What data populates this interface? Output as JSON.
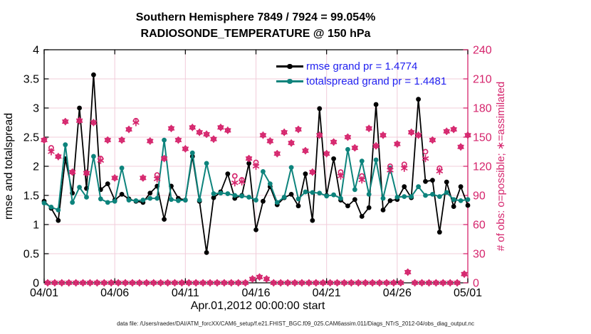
{
  "title": {
    "line1": "Southern Hemisphere 7849 / 7924 = 99.054%",
    "line2": "RADIOSONDE_TEMPERATURE @ 150 hPa"
  },
  "legend": [
    {
      "label": "rmse grand pr = 1.4774",
      "color": "#000000"
    },
    {
      "label": "totalspread grand pr = 1.4481",
      "color": "#0d837c"
    }
  ],
  "legend_text_color": "#2121f0",
  "axes": {
    "left": {
      "label": "rmse and totalspread",
      "ticks": [
        "0",
        "0.5",
        "1",
        "1.5",
        "2",
        "2.5",
        "3",
        "3.5",
        "4"
      ],
      "range": [
        0,
        4
      ],
      "color": "#000000"
    },
    "right": {
      "label": "# of obs: o=possible; ∗=assimilated",
      "ticks": [
        "0",
        "30",
        "60",
        "90",
        "120",
        "150",
        "180",
        "210",
        "240"
      ],
      "range": [
        0,
        240
      ],
      "color": "#d5246c"
    },
    "x": {
      "tick_labels": [
        "04/01",
        "04/06",
        "04/11",
        "04/16",
        "04/21",
        "04/26",
        "05/01"
      ],
      "tick_days": [
        0,
        5,
        10,
        15,
        20,
        25,
        30
      ],
      "label": "Apr.01,2012 00:00:00 start",
      "range_days": [
        0,
        30
      ]
    }
  },
  "footer": {
    "data_file": "data file: /Users/raeder/DAI/ATM_forcXX/CAM6_setup/f.e21.FHIST_BGC.f09_025.CAM6assim.011/Diags_NTrS_2012-04/obs_diag_output.nc"
  },
  "colors": {
    "accent_pink": "#d5246c",
    "teal": "#0d837c",
    "black": "#000000",
    "grid": "#f1ccda",
    "legend_blue": "#2121f0"
  },
  "chart_data": {
    "type": "line",
    "title": "Southern Hemisphere 7849 / 7924 = 99.054% — RADIOSONDE_TEMPERATURE @ 150 hPa",
    "x_description": "12-hourly analysis bins (00Z/12Z) from Apr 1 2012 00:00 to May 1 2012 00:00; 61 points; x in half-day steps",
    "xlabel": "Apr.01,2012 00:00:00 start",
    "ylabel_left": "rmse and totalspread",
    "ylabel_right": "# of obs: o=possible; ∗=assimilated",
    "ylim_left": [
      0,
      4
    ],
    "ylim_right": [
      0,
      240
    ],
    "grid": true,
    "legend_position": "top-center-inside",
    "series": [
      {
        "name": "rmse",
        "axis": "left",
        "marker": "filled-circle",
        "line": true,
        "color": "#000000",
        "grand_pr": 1.4774,
        "values": [
          1.4,
          1.28,
          1.07,
          2.13,
          1.54,
          3.0,
          1.62,
          3.57,
          1.6,
          1.7,
          1.42,
          1.52,
          1.44,
          1.4,
          1.38,
          1.54,
          1.66,
          1.09,
          1.66,
          1.45,
          1.42,
          2.17,
          1.4,
          0.52,
          1.46,
          1.56,
          1.87,
          1.45,
          1.5,
          2.05,
          0.91,
          1.4,
          1.65,
          1.34,
          1.46,
          1.52,
          1.32,
          1.87,
          1.07,
          2.99,
          1.5,
          2.13,
          1.42,
          1.32,
          1.43,
          1.14,
          1.29,
          3.06,
          1.25,
          1.41,
          1.43,
          1.65,
          1.46,
          3.15,
          1.74,
          1.76,
          0.87,
          1.73,
          1.31,
          1.65,
          1.33
        ]
      },
      {
        "name": "totalspread",
        "axis": "left",
        "marker": "filled-circle",
        "line": true,
        "color": "#0d837c",
        "grand_pr": 1.4481,
        "values": [
          1.37,
          1.3,
          1.25,
          2.37,
          1.38,
          1.64,
          1.47,
          2.17,
          1.44,
          1.38,
          1.4,
          1.97,
          1.42,
          1.41,
          1.42,
          1.45,
          1.45,
          2.45,
          1.43,
          1.41,
          1.42,
          2.23,
          1.42,
          2.05,
          1.53,
          1.54,
          1.53,
          1.5,
          1.49,
          1.47,
          1.42,
          1.91,
          1.7,
          1.38,
          1.47,
          1.98,
          1.44,
          1.56,
          1.55,
          1.54,
          1.49,
          1.51,
          1.45,
          2.29,
          1.6,
          2.09,
          1.52,
          2.11,
          1.45,
          1.97,
          1.47,
          1.48,
          1.48,
          1.65,
          1.5,
          1.52,
          1.48,
          1.55,
          1.43,
          1.41,
          1.43
        ]
      },
      {
        "name": "possible_obs",
        "axis": "right",
        "marker": "open-circle",
        "line": false,
        "color": "#d5246c",
        "values": [
          147,
          139,
          130,
          166,
          114,
          167,
          113,
          165,
          128,
          147,
          108,
          147,
          158,
          167,
          108,
          146,
          111,
          128,
          159,
          147,
          138,
          160,
          155,
          153,
          148,
          160,
          157,
          110,
          106,
          128,
          124,
          152,
          146,
          133,
          155,
          144,
          158,
          136,
          114,
          152,
          133,
          145,
          114,
          150,
          139,
          110,
          159,
          141,
          152,
          120,
          143,
          122,
          155,
          152,
          135,
          147,
          118,
          156,
          158,
          140,
          152
        ]
      },
      {
        "name": "assimilated_obs",
        "axis": "right",
        "marker": "asterisk",
        "line": false,
        "color": "#d5246c",
        "values": [
          147,
          135,
          130,
          166,
          114,
          167,
          113,
          165,
          126,
          147,
          108,
          147,
          158,
          165,
          108,
          146,
          107,
          128,
          159,
          147,
          138,
          160,
          155,
          153,
          148,
          160,
          157,
          103,
          104,
          128,
          120,
          152,
          146,
          133,
          155,
          144,
          158,
          136,
          114,
          152,
          133,
          145,
          110,
          150,
          139,
          106,
          159,
          141,
          152,
          116,
          143,
          118,
          155,
          152,
          128,
          147,
          115,
          156,
          158,
          140,
          152
        ]
      },
      {
        "name": "offsync_bin_obs",
        "axis": "right",
        "marker": "open-circle+asterisk",
        "line": false,
        "color": "#d5246c",
        "x_offset_bins": 0.5,
        "note": "06Z/18Z bins with ~zero observations, drawn along the zero line",
        "values": [
          0,
          0,
          0,
          0,
          0,
          0,
          0,
          0,
          0,
          0,
          0,
          0,
          0,
          0,
          0,
          0,
          0,
          0,
          0,
          0,
          0,
          0,
          0,
          0,
          0,
          0,
          0,
          0,
          0,
          4,
          6,
          4,
          0,
          0,
          0,
          0,
          0,
          0,
          0,
          0,
          0,
          0,
          0,
          0,
          0,
          0,
          0,
          0,
          0,
          0,
          0,
          11,
          0,
          0,
          0,
          0,
          0,
          0,
          0,
          9
        ]
      }
    ]
  }
}
